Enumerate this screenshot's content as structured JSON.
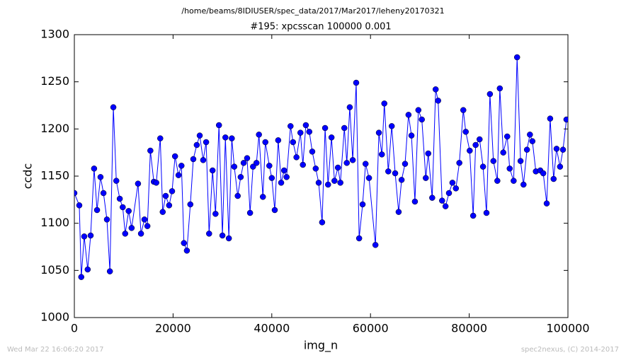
{
  "chart_data": {
    "type": "line",
    "suptitle": "/home/beams/8IDIUSER/spec_data/2017/Mar2017/leheny20170321",
    "title": "#195: xpcsscan 100000 0.001",
    "xlabel": "img_n",
    "ylabel": "ccdc",
    "footer_left": "Wed Mar 22 16:06:20 2017",
    "footer_right": "spec2nexus, (C) 2014-2017",
    "color": "#0000ff",
    "marker": "o",
    "x": [
      0,
      1000,
      1400,
      2000,
      2700,
      3300,
      4000,
      4600,
      5300,
      5900,
      6600,
      7200,
      7900,
      8500,
      9200,
      9800,
      10300,
      11000,
      11600,
      12900,
      13500,
      14200,
      14800,
      15400,
      16100,
      16600,
      17400,
      17900,
      18500,
      19200,
      19800,
      20400,
      21100,
      21700,
      22200,
      22800,
      23500,
      24100,
      24800,
      25400,
      26100,
      26700,
      27300,
      28000,
      28600,
      29300,
      30000,
      30600,
      31300,
      31900,
      32400,
      33100,
      33700,
      34300,
      35000,
      35600,
      36200,
      36900,
      37400,
      38200,
      38700,
      39500,
      40000,
      40600,
      41300,
      41900,
      42500,
      43000,
      43800,
      44300,
      45000,
      45800,
      46300,
      46900,
      47600,
      48200,
      48900,
      49500,
      50200,
      50800,
      51400,
      52100,
      52700,
      53400,
      53900,
      54700,
      55200,
      55800,
      56400,
      57100,
      57700,
      58400,
      59000,
      59700,
      61000,
      61700,
      62300,
      62800,
      63600,
      64300,
      65000,
      65700,
      66300,
      67000,
      67700,
      68300,
      69000,
      69700,
      70400,
      71200,
      71700,
      72500,
      73200,
      73700,
      74500,
      75200,
      75900,
      76600,
      77300,
      78000,
      78800,
      79300,
      80100,
      80800,
      81300,
      82100,
      82800,
      83500,
      84200,
      84900,
      85700,
      86200,
      86900,
      87700,
      88200,
      89000,
      89700,
      90400,
      91000,
      91700,
      92300,
      92800,
      93500,
      94400,
      95000,
      95700,
      96400,
      97100,
      97700,
      98400,
      99000,
      99700
    ],
    "values": [
      1132,
      1119,
      1043,
      1086,
      1051,
      1087,
      1158,
      1114,
      1149,
      1132,
      1104,
      1049,
      1223,
      1145,
      1126,
      1117,
      1089,
      1113,
      1095,
      1142,
      1089,
      1104,
      1097,
      1177,
      1144,
      1143,
      1190,
      1112,
      1129,
      1119,
      1134,
      1171,
      1151,
      1161,
      1079,
      1071,
      1120,
      1168,
      1183,
      1193,
      1167,
      1186,
      1089,
      1156,
      1110,
      1204,
      1087,
      1191,
      1084,
      1190,
      1160,
      1129,
      1149,
      1164,
      1169,
      1111,
      1160,
      1164,
      1194,
      1128,
      1186,
      1161,
      1148,
      1114,
      1188,
      1143,
      1156,
      1149,
      1203,
      1186,
      1170,
      1196,
      1162,
      1204,
      1197,
      1176,
      1158,
      1143,
      1101,
      1201,
      1141,
      1191,
      1145,
      1159,
      1143,
      1201,
      1164,
      1223,
      1167,
      1249,
      1084,
      1120,
      1163,
      1148,
      1077,
      1196,
      1173,
      1227,
      1155,
      1203,
      1153,
      1112,
      1146,
      1163,
      1215,
      1193,
      1123,
      1220,
      1210,
      1148,
      1174,
      1127,
      1242,
      1230,
      1124,
      1118,
      1132,
      1143,
      1137,
      1164,
      1220,
      1197,
      1177,
      1108,
      1183,
      1189,
      1160,
      1111,
      1237,
      1166,
      1145,
      1243,
      1175,
      1192,
      1158,
      1145,
      1276,
      1166,
      1141,
      1178,
      1194,
      1187,
      1155,
      1156,
      1153,
      1121,
      1211,
      1147,
      1179,
      1160,
      1178,
      1210
    ],
    "xlim": [
      0,
      100000
    ],
    "xticks": [
      0,
      20000,
      40000,
      60000,
      80000,
      100000
    ],
    "ylim": [
      1000,
      1300
    ],
    "yticks": [
      1000,
      1050,
      1100,
      1150,
      1200,
      1250,
      1300
    ]
  }
}
